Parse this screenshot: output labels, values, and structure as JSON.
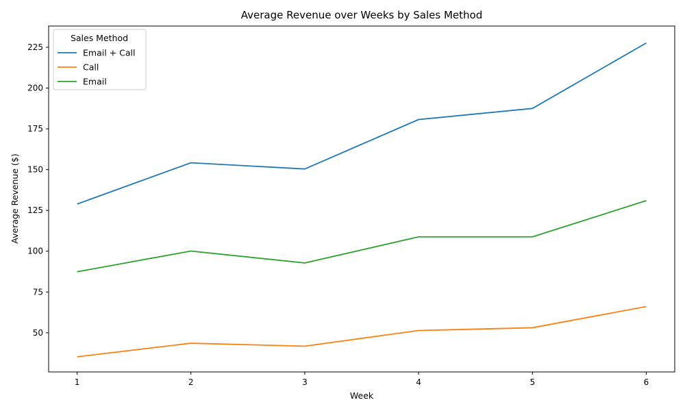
{
  "chart_data": {
    "type": "line",
    "title": "Average Revenue over Weeks by Sales Method",
    "xlabel": "Week",
    "ylabel": "Average Revenue ($)",
    "x": [
      1,
      2,
      3,
      4,
      5,
      6
    ],
    "xticks": [
      "1",
      "2",
      "3",
      "4",
      "5",
      "6"
    ],
    "yticks": [
      "50",
      "75",
      "100",
      "125",
      "150",
      "175",
      "200",
      "225"
    ],
    "ylim": [
      26,
      238
    ],
    "xlim": [
      0.75,
      6.25
    ],
    "grid": false,
    "legend_title": "Sales Method",
    "legend_position": "top-left",
    "series": [
      {
        "name": "Email + Call",
        "color": "#1f77b4",
        "values": [
          128.9,
          154.2,
          150.4,
          180.7,
          187.5,
          227.6
        ]
      },
      {
        "name": "Call",
        "color": "#ff7f0e",
        "values": [
          35.3,
          43.6,
          41.8,
          51.4,
          53.1,
          66.1
        ]
      },
      {
        "name": "Email",
        "color": "#2ca02c",
        "values": [
          87.4,
          100.1,
          92.8,
          108.8,
          108.8,
          131.0
        ]
      }
    ]
  }
}
